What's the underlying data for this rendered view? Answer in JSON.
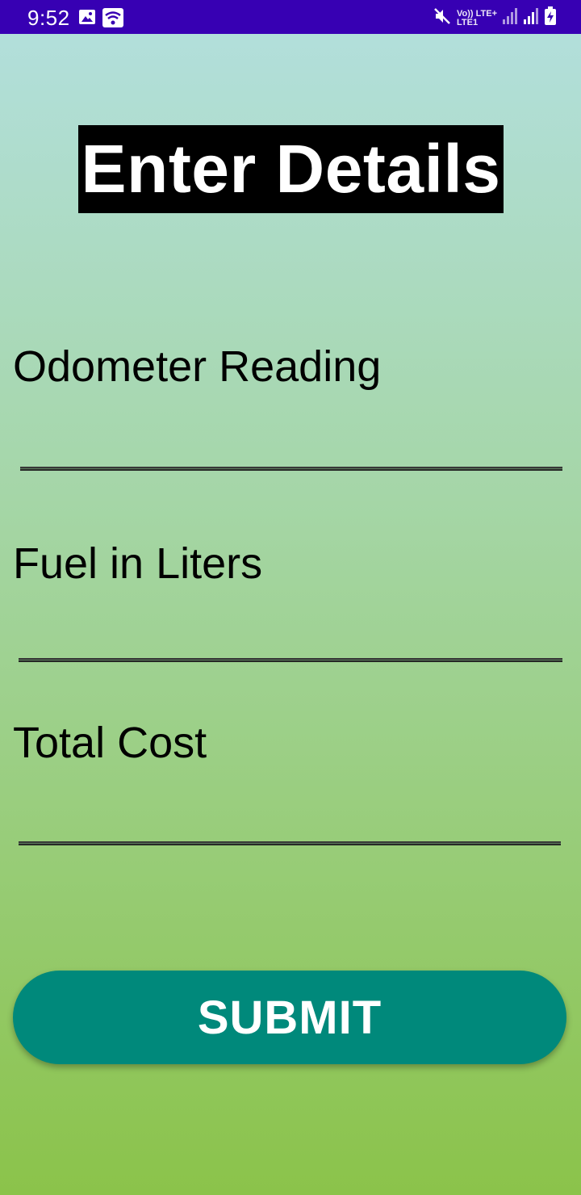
{
  "status_bar": {
    "time": "9:52",
    "network_top": "Vo)) LTE+",
    "network_bottom": "LTE1",
    "icons": [
      "image-icon",
      "wifi-icon",
      "mute-icon",
      "signal-icon",
      "signal-icon",
      "battery-charging-icon"
    ]
  },
  "form": {
    "title": "Enter Details",
    "fields": [
      {
        "label": "Odometer Reading",
        "value": "",
        "placeholder": ""
      },
      {
        "label": "Fuel in Liters",
        "value": "",
        "placeholder": ""
      },
      {
        "label": "Total Cost",
        "value": "",
        "placeholder": ""
      }
    ],
    "submit_label": "SUBMIT"
  },
  "colors": {
    "status_bar": "#3700b3",
    "gradient_top": "#b2dfdb",
    "gradient_bottom": "#8bc34a",
    "title_background": "#000000",
    "button": "#00897b"
  }
}
